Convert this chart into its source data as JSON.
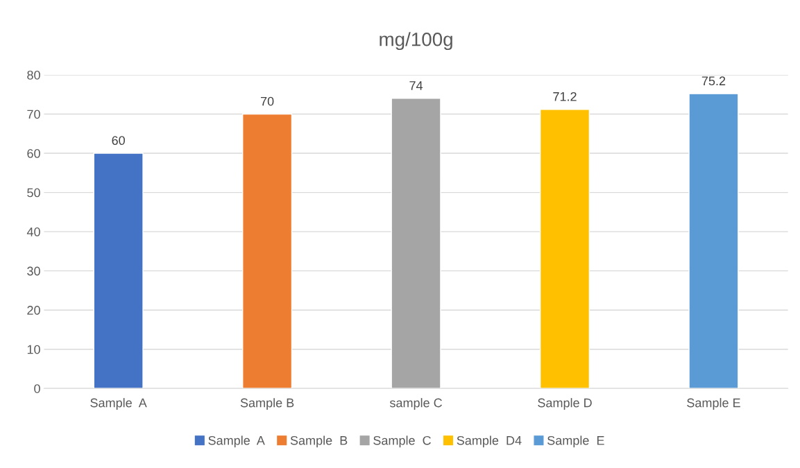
{
  "chart_data": {
    "type": "bar",
    "title": "mg/100g",
    "categories": [
      "Sample  A",
      "Sample B",
      "sample C",
      "Sample D",
      "Sample E"
    ],
    "series": [
      {
        "name": "Sample  A",
        "color": "#4472c4",
        "values": [
          60,
          null,
          null,
          null,
          null
        ]
      },
      {
        "name": "Sample  B",
        "color": "#ed7d31",
        "values": [
          null,
          70,
          null,
          null,
          null
        ]
      },
      {
        "name": "Sample  C",
        "color": "#a5a5a5",
        "values": [
          null,
          null,
          74,
          null,
          null
        ]
      },
      {
        "name": "Sample  D4",
        "color": "#ffc000",
        "values": [
          null,
          null,
          null,
          71.2,
          null
        ]
      },
      {
        "name": "Sample  E",
        "color": "#5b9bd5",
        "values": [
          null,
          null,
          null,
          null,
          75.2
        ]
      }
    ],
    "ylim": [
      0,
      80
    ],
    "yticks": [
      0,
      10,
      20,
      30,
      40,
      50,
      60,
      70,
      80
    ],
    "grid": "y",
    "legend": "bottom",
    "data_labels": true
  }
}
